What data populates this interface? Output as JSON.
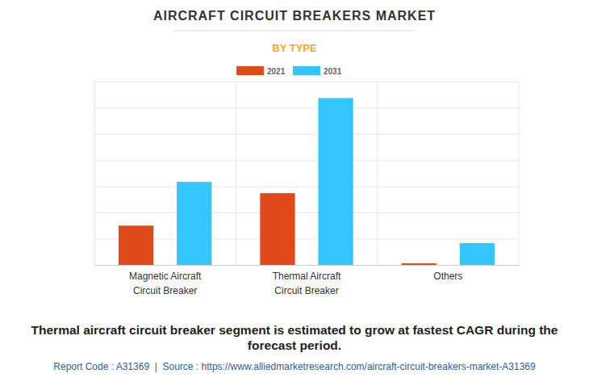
{
  "chart_data": {
    "type": "bar",
    "title": "AIRCRAFT CIRCUIT BREAKERS MARKET",
    "subtitle": "BY TYPE",
    "categories": [
      "Magnetic Aircraft Circuit Breaker",
      "Thermal Aircraft Circuit Breaker",
      "Others"
    ],
    "series": [
      {
        "name": "2021",
        "color": "#e0491a",
        "values": [
          1.5,
          2.74,
          0.06
        ]
      },
      {
        "name": "2031",
        "color": "#33c5fc",
        "values": [
          3.17,
          6.37,
          0.83
        ]
      }
    ],
    "ylim": [
      0,
      7
    ],
    "yticks": [
      0,
      1,
      2,
      3,
      4,
      5,
      6,
      7
    ],
    "grid": true,
    "legend": "top",
    "tick_labels": "x",
    "annotations": [
      "Thermal aircraft circuit breaker segment is estimated to grow at fastest CAGR during the forecast period.",
      "Report Code : A31369  |  Source : https://www.alliedmarketresearch.com/aircraft-circuit-breakers-market-A31369"
    ]
  }
}
